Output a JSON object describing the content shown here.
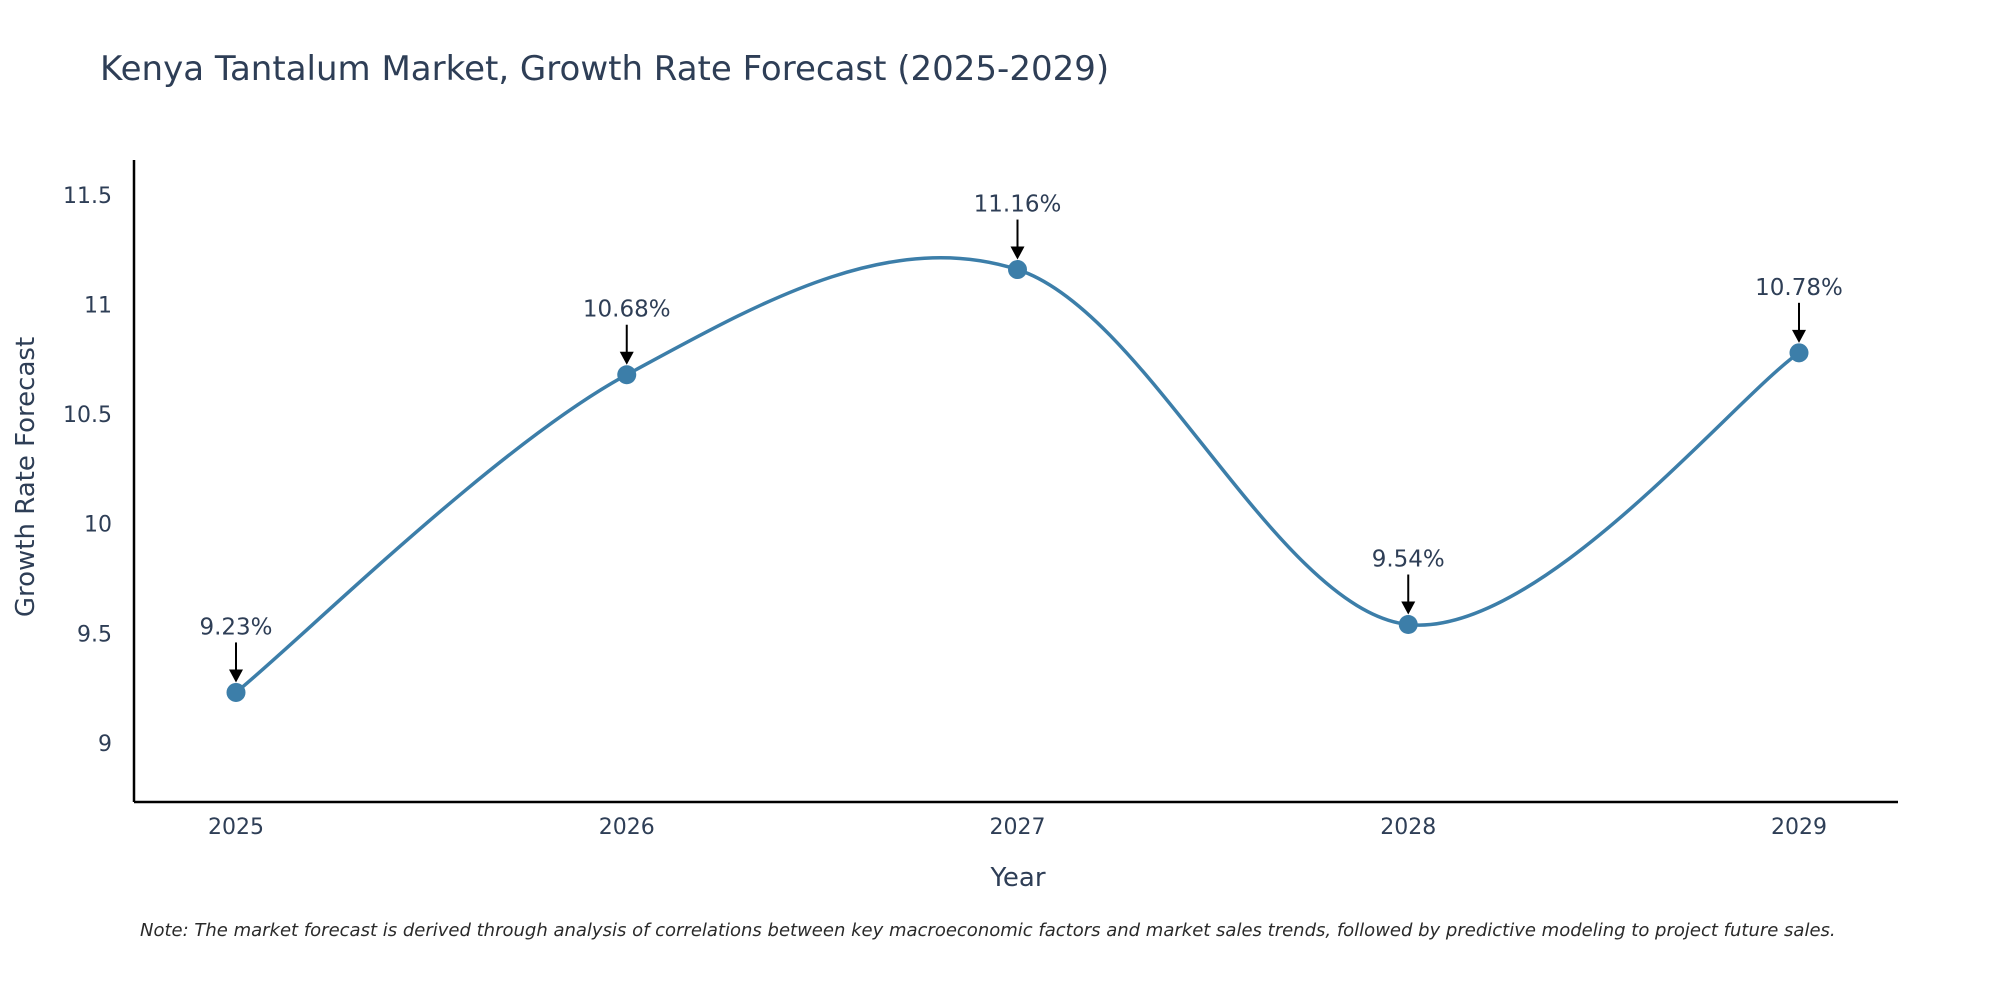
{
  "chart_data": {
    "type": "line",
    "title": "Kenya Tantalum Market, Growth Rate Forecast (2025-2029)",
    "xlabel": "Year",
    "ylabel": "Growth Rate Forecast",
    "categories": [
      "2025",
      "2026",
      "2027",
      "2028",
      "2029"
    ],
    "values": [
      9.23,
      10.68,
      11.16,
      9.54,
      10.78
    ],
    "data_labels": [
      "9.23%",
      "10.68%",
      "11.16%",
      "9.54%",
      "10.78%"
    ],
    "y_ticks": [
      9,
      9.5,
      10,
      10.5,
      11,
      11.5
    ],
    "y_tick_labels": [
      "9",
      "9.5",
      "10",
      "10.5",
      "11",
      "11.5"
    ],
    "ylim": [
      8.73,
      11.66
    ],
    "grid": false,
    "line_color": "#3c7ea9",
    "marker_color": "#3c7ea9"
  },
  "note": "Note: The market forecast is derived through analysis of correlations between key macroeconomic factors and market sales trends, followed by predictive modeling to project future sales."
}
